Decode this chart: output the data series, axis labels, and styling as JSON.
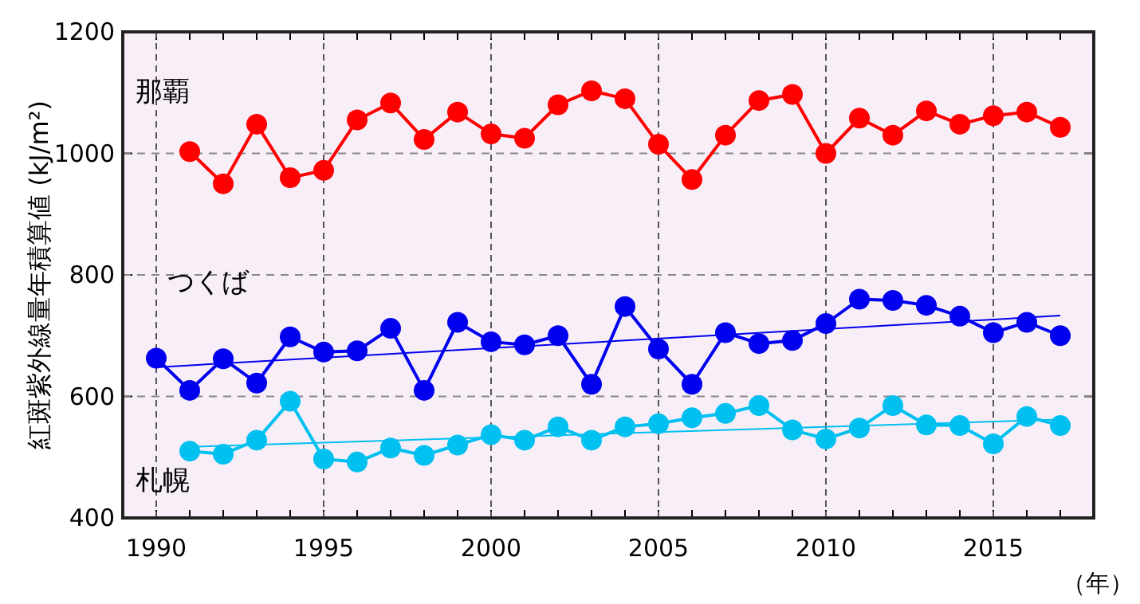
{
  "chart_data": {
    "type": "line",
    "ylabel": "紅斑紫外線量年積算値 (kJ/m²)",
    "xlabel": "（年）",
    "xlim": [
      1989,
      2018
    ],
    "ylim": [
      400,
      1200
    ],
    "xticks": [
      1990,
      {
        "value": 1991,
        "label": null
      },
      {
        "value": 1992,
        "label": null
      },
      {
        "value": 1993,
        "label": null
      },
      {
        "value": 1994,
        "label": null
      },
      1995,
      {
        "value": 1996,
        "label": null
      },
      {
        "value": 1997,
        "label": null
      },
      {
        "value": 1998,
        "label": null
      },
      {
        "value": 1999,
        "label": null
      },
      2000,
      {
        "value": 2001,
        "label": null
      },
      {
        "value": 2002,
        "label": null
      },
      {
        "value": 2003,
        "label": null
      },
      {
        "value": 2004,
        "label": null
      },
      2005,
      {
        "value": 2006,
        "label": null
      },
      {
        "value": 2007,
        "label": null
      },
      {
        "value": 2008,
        "label": null
      },
      {
        "value": 2009,
        "label": null
      },
      2010,
      {
        "value": 2011,
        "label": null
      },
      {
        "value": 2012,
        "label": null
      },
      {
        "value": 2013,
        "label": null
      },
      {
        "value": 2014,
        "label": null
      },
      2015,
      {
        "value": 2016,
        "label": null
      },
      {
        "value": 2017,
        "label": null
      }
    ],
    "yticks": [
      400,
      600,
      800,
      1000,
      1200
    ],
    "grid": true,
    "marker": "circle",
    "series": [
      {
        "name": "那覇",
        "color": "#ff0000",
        "x": [
          1991,
          1992,
          1993,
          1994,
          1995,
          1996,
          1997,
          1998,
          1999,
          2000,
          2001,
          2002,
          2003,
          2004,
          2005,
          2006,
          2007,
          2008,
          2009,
          2010,
          2011,
          2012,
          2013,
          2014,
          2015,
          2016,
          2017
        ],
        "values": [
          1003,
          950,
          1048,
          960,
          972,
          1055,
          1083,
          1023,
          1068,
          1032,
          1025,
          1080,
          1103,
          1090,
          1015,
          957,
          1030,
          1087,
          1097,
          1000,
          1058,
          1030,
          1070,
          1048,
          1062,
          1068,
          1043
        ]
      },
      {
        "name": "つくば",
        "color": "#0000ee",
        "x": [
          1990,
          1991,
          1992,
          1993,
          1994,
          1995,
          1996,
          1997,
          1998,
          1999,
          2000,
          2001,
          2002,
          2003,
          2004,
          2005,
          2006,
          2007,
          2008,
          2009,
          2010,
          2011,
          2012,
          2013,
          2014,
          2015,
          2016,
          2017
        ],
        "values": [
          663,
          610,
          662,
          622,
          698,
          673,
          675,
          712,
          610,
          722,
          690,
          685,
          700,
          620,
          748,
          678,
          620,
          705,
          687,
          692,
          720,
          760,
          758,
          750,
          732,
          705,
          722,
          700
        ]
      },
      {
        "name": "札幌",
        "color": "#00c0f0",
        "x": [
          1991,
          1992,
          1993,
          1994,
          1995,
          1996,
          1997,
          1998,
          1999,
          2000,
          2001,
          2002,
          2003,
          2004,
          2005,
          2006,
          2007,
          2008,
          2009,
          2010,
          2011,
          2012,
          2013,
          2014,
          2015,
          2016,
          2017
        ],
        "values": [
          510,
          505,
          528,
          592,
          497,
          492,
          515,
          503,
          520,
          537,
          528,
          550,
          528,
          550,
          555,
          565,
          572,
          585,
          545,
          530,
          548,
          585,
          553,
          552,
          522,
          567,
          552
        ]
      },
      {
        "type": "line",
        "marker": "none",
        "color": "#0000ee",
        "x": [
          1990,
          2017
        ],
        "values": [
          648,
          733
        ]
      },
      {
        "type": "line",
        "marker": "none",
        "color": "#00c0f0",
        "x": [
          1991,
          2017
        ],
        "values": [
          517,
          562
        ]
      }
    ]
  }
}
